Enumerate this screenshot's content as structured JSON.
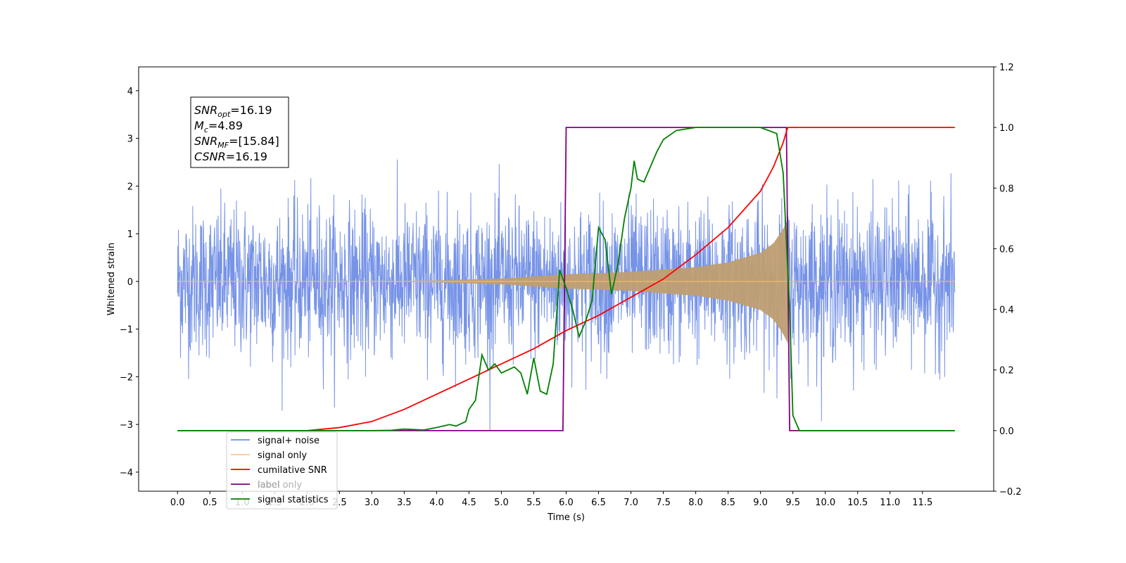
{
  "chart_data": {
    "type": "line",
    "title": "",
    "xlabel": "Time (s)",
    "ylabel": "Whitened strain",
    "xlim": [
      -0.6,
      12.6
    ],
    "ylim": [
      -4.4,
      4.5
    ],
    "ylim_right": [
      -0.2,
      1.2
    ],
    "x_ticks": [
      "0.0",
      "0.5",
      "1.0",
      "1.5",
      "2.0",
      "2.5",
      "3.0",
      "3.5",
      "4.0",
      "4.5",
      "5.0",
      "5.5",
      "6.0",
      "6.5",
      "7.0",
      "7.5",
      "8.0",
      "8.5",
      "9.0",
      "9.5",
      "10.0",
      "10.5",
      "11.0",
      "11.5"
    ],
    "y_ticks": [
      "−4",
      "−3",
      "−2",
      "−1",
      "0",
      "1",
      "2",
      "3",
      "4"
    ],
    "y_ticks_right": [
      "−0.2",
      "0.0",
      "0.2",
      "0.4",
      "0.6",
      "0.8",
      "1.0",
      "1.2"
    ],
    "grid": false,
    "legend_position": "lower-left",
    "noise": {
      "amplitude": 0.78,
      "t_start": 0.0,
      "t_end": 12.0
    },
    "signal_window": [
      6.0,
      9.45
    ],
    "series": [
      {
        "name": "signal+ noise",
        "color": "#6f8de6",
        "axis": "left",
        "kind": "noise"
      },
      {
        "name": "signal only",
        "color": "#f5b963",
        "axis": "left",
        "kind": "chirp",
        "envelope": [
          [
            0.0,
            0.0
          ],
          [
            3.0,
            0.0
          ],
          [
            4.0,
            0.02
          ],
          [
            5.0,
            0.06
          ],
          [
            6.0,
            0.15
          ],
          [
            7.0,
            0.2
          ],
          [
            8.0,
            0.3
          ],
          [
            8.5,
            0.4
          ],
          [
            9.0,
            0.6
          ],
          [
            9.2,
            0.8
          ],
          [
            9.35,
            1.1
          ],
          [
            9.42,
            1.3
          ],
          [
            9.45,
            0.0
          ],
          [
            12.0,
            0.0
          ]
        ]
      },
      {
        "name": "cumilative SNR",
        "color": "#ff0000",
        "axis": "right",
        "points": [
          [
            2.0,
            0.0
          ],
          [
            2.5,
            0.01
          ],
          [
            3.0,
            0.03
          ],
          [
            3.5,
            0.07
          ],
          [
            4.0,
            0.12
          ],
          [
            4.5,
            0.17
          ],
          [
            5.0,
            0.22
          ],
          [
            5.5,
            0.27
          ],
          [
            6.0,
            0.33
          ],
          [
            6.5,
            0.38
          ],
          [
            7.0,
            0.44
          ],
          [
            7.5,
            0.5
          ],
          [
            8.0,
            0.58
          ],
          [
            8.5,
            0.67
          ],
          [
            9.0,
            0.79
          ],
          [
            9.2,
            0.87
          ],
          [
            9.35,
            0.95
          ],
          [
            9.42,
            1.0
          ],
          [
            12.0,
            1.0
          ]
        ]
      },
      {
        "name": "label",
        "color": "#800080",
        "axis": "right",
        "points": [
          [
            0.0,
            0.0
          ],
          [
            5.95,
            0.0
          ],
          [
            6.0,
            1.0
          ],
          [
            9.4,
            1.0
          ],
          [
            9.45,
            0.0
          ],
          [
            12.0,
            0.0
          ]
        ]
      },
      {
        "name": "label only",
        "color": "#b0b0b0",
        "axis": "right",
        "points": []
      },
      {
        "name": "signal statistics",
        "color": "#008000",
        "axis": "right",
        "points": [
          [
            0.0,
            0.0
          ],
          [
            3.0,
            0.0
          ],
          [
            3.3,
            0.001
          ],
          [
            3.5,
            0.005
          ],
          [
            3.8,
            0.002
          ],
          [
            4.0,
            0.01
          ],
          [
            4.2,
            0.02
          ],
          [
            4.3,
            0.015
          ],
          [
            4.45,
            0.03
          ],
          [
            4.5,
            0.07
          ],
          [
            4.6,
            0.1
          ],
          [
            4.7,
            0.25
          ],
          [
            4.8,
            0.2
          ],
          [
            4.9,
            0.22
          ],
          [
            5.0,
            0.19
          ],
          [
            5.1,
            0.2
          ],
          [
            5.2,
            0.21
          ],
          [
            5.3,
            0.19
          ],
          [
            5.4,
            0.12
          ],
          [
            5.5,
            0.24
          ],
          [
            5.6,
            0.13
          ],
          [
            5.7,
            0.12
          ],
          [
            5.8,
            0.22
          ],
          [
            5.9,
            0.53
          ],
          [
            6.0,
            0.47
          ],
          [
            6.1,
            0.4
          ],
          [
            6.2,
            0.31
          ],
          [
            6.3,
            0.36
          ],
          [
            6.4,
            0.43
          ],
          [
            6.5,
            0.67
          ],
          [
            6.6,
            0.63
          ],
          [
            6.7,
            0.45
          ],
          [
            6.8,
            0.55
          ],
          [
            6.9,
            0.7
          ],
          [
            7.0,
            0.8
          ],
          [
            7.05,
            0.89
          ],
          [
            7.1,
            0.83
          ],
          [
            7.2,
            0.82
          ],
          [
            7.3,
            0.87
          ],
          [
            7.4,
            0.92
          ],
          [
            7.5,
            0.96
          ],
          [
            7.7,
            0.99
          ],
          [
            8.0,
            1.0
          ],
          [
            8.5,
            1.0
          ],
          [
            9.0,
            1.0
          ],
          [
            9.25,
            0.98
          ],
          [
            9.35,
            0.85
          ],
          [
            9.45,
            0.4
          ],
          [
            9.5,
            0.05
          ],
          [
            9.6,
            0.0
          ],
          [
            12.0,
            0.0
          ]
        ]
      }
    ],
    "annotation": {
      "lines": [
        {
          "main": "SNR",
          "sub": "opt",
          "rest": "=16.19"
        },
        {
          "main": "M",
          "sub": "c",
          "rest": "=4.89"
        },
        {
          "main": "SNR",
          "sub": "MF",
          "rest": "=[15.84]"
        },
        {
          "main": "CSNR",
          "sub": "",
          "rest": "=16.19"
        }
      ]
    }
  }
}
